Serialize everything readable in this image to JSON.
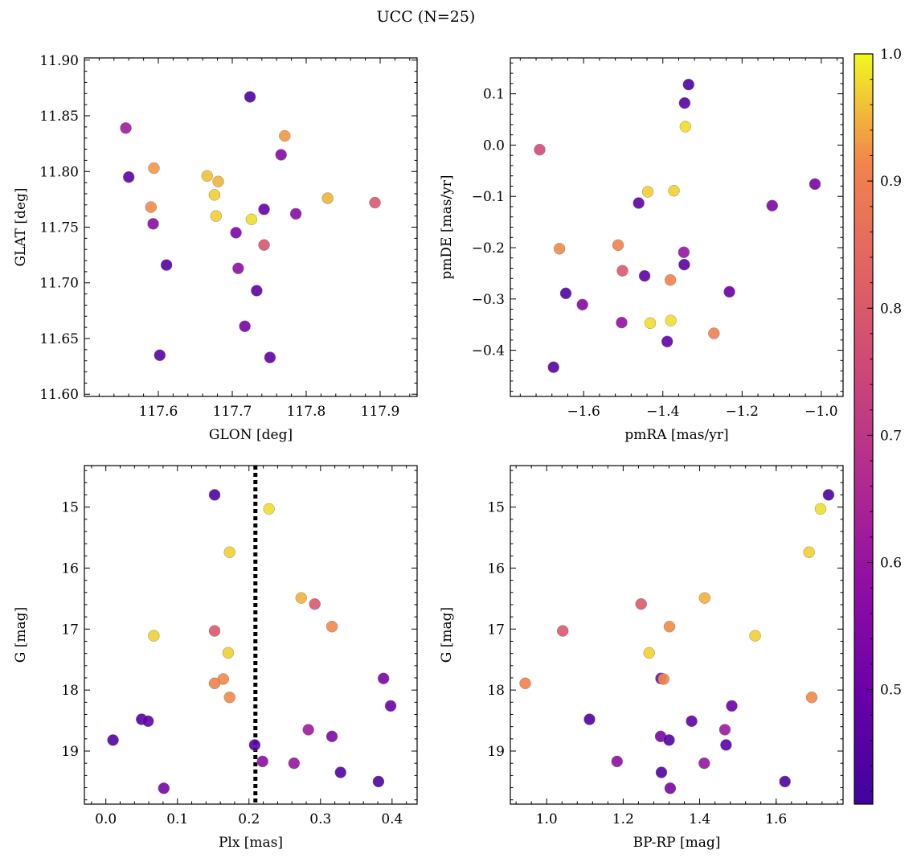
{
  "title": "UCC (N=25)",
  "colormap": "plasma",
  "colorbar": {
    "min": 0.41,
    "max": 1.0,
    "ticks": [
      0.5,
      0.6,
      0.7,
      0.8,
      0.9,
      1.0
    ],
    "tick_labels": [
      "0.5",
      "0.6",
      "0.7",
      "0.8",
      "0.9",
      "1.0"
    ]
  },
  "colors": {
    "dashed_line": "#000000",
    "point_edge": "#7a7a7a"
  },
  "chart_data": [
    {
      "type": "scatter",
      "xlabel": "GLON [deg]",
      "ylabel": "GLAT [deg]",
      "xlim": [
        117.5,
        117.95
      ],
      "ylim": [
        11.598,
        11.902
      ],
      "xticks": [
        117.6,
        117.7,
        117.8,
        117.9
      ],
      "xtick_labels": [
        "117.6",
        "117.7",
        "117.8",
        "117.9"
      ],
      "yticks": [
        11.6,
        11.65,
        11.7,
        11.75,
        11.8,
        11.85,
        11.9
      ],
      "ytick_labels": [
        "11.60",
        "11.65",
        "11.70",
        "11.75",
        "11.80",
        "11.85",
        "11.90"
      ],
      "points": [
        {
          "x": 117.724,
          "y": 11.867,
          "c": 0.44
        },
        {
          "x": 117.556,
          "y": 11.839,
          "c": 0.62
        },
        {
          "x": 117.771,
          "y": 11.832,
          "c": 0.93
        },
        {
          "x": 117.766,
          "y": 11.815,
          "c": 0.56
        },
        {
          "x": 117.594,
          "y": 11.803,
          "c": 0.93
        },
        {
          "x": 117.666,
          "y": 11.796,
          "c": 0.96
        },
        {
          "x": 117.56,
          "y": 11.795,
          "c": 0.47
        },
        {
          "x": 117.681,
          "y": 11.791,
          "c": 0.95
        },
        {
          "x": 117.676,
          "y": 11.779,
          "c": 0.97
        },
        {
          "x": 117.829,
          "y": 11.776,
          "c": 0.95
        },
        {
          "x": 117.893,
          "y": 11.772,
          "c": 0.8
        },
        {
          "x": 117.59,
          "y": 11.768,
          "c": 0.92
        },
        {
          "x": 117.743,
          "y": 11.766,
          "c": 0.49
        },
        {
          "x": 117.786,
          "y": 11.762,
          "c": 0.57
        },
        {
          "x": 117.678,
          "y": 11.76,
          "c": 0.97
        },
        {
          "x": 117.726,
          "y": 11.757,
          "c": 0.98
        },
        {
          "x": 117.593,
          "y": 11.753,
          "c": 0.57
        },
        {
          "x": 117.705,
          "y": 11.745,
          "c": 0.54
        },
        {
          "x": 117.743,
          "y": 11.734,
          "c": 0.79
        },
        {
          "x": 117.611,
          "y": 11.716,
          "c": 0.45
        },
        {
          "x": 117.708,
          "y": 11.713,
          "c": 0.58
        },
        {
          "x": 117.733,
          "y": 11.693,
          "c": 0.47
        },
        {
          "x": 117.717,
          "y": 11.661,
          "c": 0.53
        },
        {
          "x": 117.602,
          "y": 11.635,
          "c": 0.46
        },
        {
          "x": 117.751,
          "y": 11.633,
          "c": 0.48
        }
      ]
    },
    {
      "type": "scatter",
      "xlabel": "pmRA [mas/yr]",
      "ylabel": "pmDE [mas/yr]",
      "xlim": [
        -1.785,
        -0.945
      ],
      "ylim": [
        -0.49,
        0.17
      ],
      "xticks": [
        -1.6,
        -1.4,
        -1.2,
        -1.0
      ],
      "xtick_labels": [
        "−1.6",
        "−1.4",
        "−1.2",
        "−1.0"
      ],
      "yticks": [
        -0.4,
        -0.3,
        -0.2,
        -0.1,
        0.0,
        0.1
      ],
      "ytick_labels": [
        "−0.4",
        "−0.3",
        "−0.2",
        "−0.1",
        "0.0",
        "0.1"
      ],
      "points": [
        {
          "x": -1.335,
          "y": 0.118,
          "c": 0.44
        },
        {
          "x": -1.345,
          "y": 0.082,
          "c": 0.46
        },
        {
          "x": -1.343,
          "y": 0.036,
          "c": 0.98
        },
        {
          "x": -1.711,
          "y": -0.009,
          "c": 0.76
        },
        {
          "x": -1.016,
          "y": -0.076,
          "c": 0.53
        },
        {
          "x": -1.438,
          "y": -0.091,
          "c": 0.97
        },
        {
          "x": -1.372,
          "y": -0.089,
          "c": 0.97
        },
        {
          "x": -1.461,
          "y": -0.113,
          "c": 0.47
        },
        {
          "x": -1.124,
          "y": -0.118,
          "c": 0.54
        },
        {
          "x": -1.513,
          "y": -0.195,
          "c": 0.91
        },
        {
          "x": -1.661,
          "y": -0.202,
          "c": 0.92
        },
        {
          "x": -1.347,
          "y": -0.209,
          "c": 0.6
        },
        {
          "x": -1.346,
          "y": -0.233,
          "c": 0.46
        },
        {
          "x": -1.502,
          "y": -0.245,
          "c": 0.8
        },
        {
          "x": -1.446,
          "y": -0.255,
          "c": 0.47
        },
        {
          "x": -1.381,
          "y": -0.263,
          "c": 0.91
        },
        {
          "x": -1.232,
          "y": -0.286,
          "c": 0.5
        },
        {
          "x": -1.645,
          "y": -0.289,
          "c": 0.45
        },
        {
          "x": -1.603,
          "y": -0.311,
          "c": 0.56
        },
        {
          "x": -1.38,
          "y": -0.342,
          "c": 0.98
        },
        {
          "x": -1.432,
          "y": -0.347,
          "c": 0.98
        },
        {
          "x": -1.504,
          "y": -0.346,
          "c": 0.59
        },
        {
          "x": -1.271,
          "y": -0.367,
          "c": 0.9
        },
        {
          "x": -1.389,
          "y": -0.383,
          "c": 0.48
        },
        {
          "x": -1.676,
          "y": -0.433,
          "c": 0.46
        }
      ]
    },
    {
      "type": "scatter",
      "xlabel": "Plx [mas]",
      "ylabel": "G [mag]",
      "xlim": [
        -0.03,
        0.435
      ],
      "ylim": [
        19.87,
        14.32
      ],
      "xticks": [
        0.0,
        0.1,
        0.2,
        0.3,
        0.4
      ],
      "xtick_labels": [
        "0.0",
        "0.1",
        "0.2",
        "0.3",
        "0.4"
      ],
      "yticks": [
        15,
        16,
        17,
        18,
        19
      ],
      "ytick_labels": [
        "15",
        "16",
        "17",
        "18",
        "19"
      ],
      "vline": 0.209,
      "points": [
        {
          "x": 0.152,
          "y": 14.8,
          "c": 0.44
        },
        {
          "x": 0.228,
          "y": 15.03,
          "c": 0.98
        },
        {
          "x": 0.173,
          "y": 15.74,
          "c": 0.97
        },
        {
          "x": 0.273,
          "y": 16.49,
          "c": 0.95
        },
        {
          "x": 0.292,
          "y": 16.59,
          "c": 0.8
        },
        {
          "x": 0.316,
          "y": 16.96,
          "c": 0.92
        },
        {
          "x": 0.152,
          "y": 17.03,
          "c": 0.8
        },
        {
          "x": 0.067,
          "y": 17.11,
          "c": 0.97
        },
        {
          "x": 0.171,
          "y": 17.39,
          "c": 0.97
        },
        {
          "x": 0.388,
          "y": 17.81,
          "c": 0.53
        },
        {
          "x": 0.164,
          "y": 17.82,
          "c": 0.92
        },
        {
          "x": 0.152,
          "y": 17.89,
          "c": 0.91
        },
        {
          "x": 0.173,
          "y": 18.12,
          "c": 0.92
        },
        {
          "x": 0.398,
          "y": 18.26,
          "c": 0.5
        },
        {
          "x": 0.05,
          "y": 18.48,
          "c": 0.45
        },
        {
          "x": 0.059,
          "y": 18.51,
          "c": 0.48
        },
        {
          "x": 0.283,
          "y": 18.65,
          "c": 0.62
        },
        {
          "x": 0.316,
          "y": 18.76,
          "c": 0.54
        },
        {
          "x": 0.01,
          "y": 18.82,
          "c": 0.45
        },
        {
          "x": 0.208,
          "y": 18.9,
          "c": 0.46
        },
        {
          "x": 0.219,
          "y": 19.17,
          "c": 0.58
        },
        {
          "x": 0.263,
          "y": 19.2,
          "c": 0.6
        },
        {
          "x": 0.328,
          "y": 19.35,
          "c": 0.45
        },
        {
          "x": 0.381,
          "y": 19.5,
          "c": 0.44
        },
        {
          "x": 0.081,
          "y": 19.61,
          "c": 0.53
        }
      ]
    },
    {
      "type": "scatter",
      "xlabel": "BP-RP [mag]",
      "ylabel": "G [mag]",
      "xlim": [
        0.905,
        1.775
      ],
      "ylim": [
        19.87,
        14.32
      ],
      "xticks": [
        1.0,
        1.2,
        1.4,
        1.6
      ],
      "xtick_labels": [
        "1.0",
        "1.2",
        "1.4",
        "1.6"
      ],
      "yticks": [
        15,
        16,
        17,
        18,
        19
      ],
      "ytick_labels": [
        "15",
        "16",
        "17",
        "18",
        "19"
      ],
      "points": [
        {
          "x": 1.737,
          "y": 14.8,
          "c": 0.44
        },
        {
          "x": 1.716,
          "y": 15.03,
          "c": 0.98
        },
        {
          "x": 1.686,
          "y": 15.74,
          "c": 0.97
        },
        {
          "x": 1.413,
          "y": 16.49,
          "c": 0.95
        },
        {
          "x": 1.247,
          "y": 16.59,
          "c": 0.8
        },
        {
          "x": 1.321,
          "y": 16.96,
          "c": 0.92
        },
        {
          "x": 1.042,
          "y": 17.03,
          "c": 0.8
        },
        {
          "x": 1.545,
          "y": 17.11,
          "c": 0.97
        },
        {
          "x": 1.268,
          "y": 17.39,
          "c": 0.97
        },
        {
          "x": 1.299,
          "y": 17.81,
          "c": 0.53
        },
        {
          "x": 1.306,
          "y": 17.82,
          "c": 0.92
        },
        {
          "x": 0.944,
          "y": 17.89,
          "c": 0.91
        },
        {
          "x": 1.693,
          "y": 18.12,
          "c": 0.92
        },
        {
          "x": 1.484,
          "y": 18.26,
          "c": 0.5
        },
        {
          "x": 1.112,
          "y": 18.48,
          "c": 0.45
        },
        {
          "x": 1.379,
          "y": 18.51,
          "c": 0.48
        },
        {
          "x": 1.466,
          "y": 18.65,
          "c": 0.62
        },
        {
          "x": 1.298,
          "y": 18.76,
          "c": 0.54
        },
        {
          "x": 1.32,
          "y": 18.82,
          "c": 0.45
        },
        {
          "x": 1.469,
          "y": 18.9,
          "c": 0.46
        },
        {
          "x": 1.184,
          "y": 19.17,
          "c": 0.58
        },
        {
          "x": 1.412,
          "y": 19.2,
          "c": 0.6
        },
        {
          "x": 1.3,
          "y": 19.35,
          "c": 0.45
        },
        {
          "x": 1.623,
          "y": 19.5,
          "c": 0.44
        },
        {
          "x": 1.323,
          "y": 19.61,
          "c": 0.53
        }
      ]
    }
  ]
}
